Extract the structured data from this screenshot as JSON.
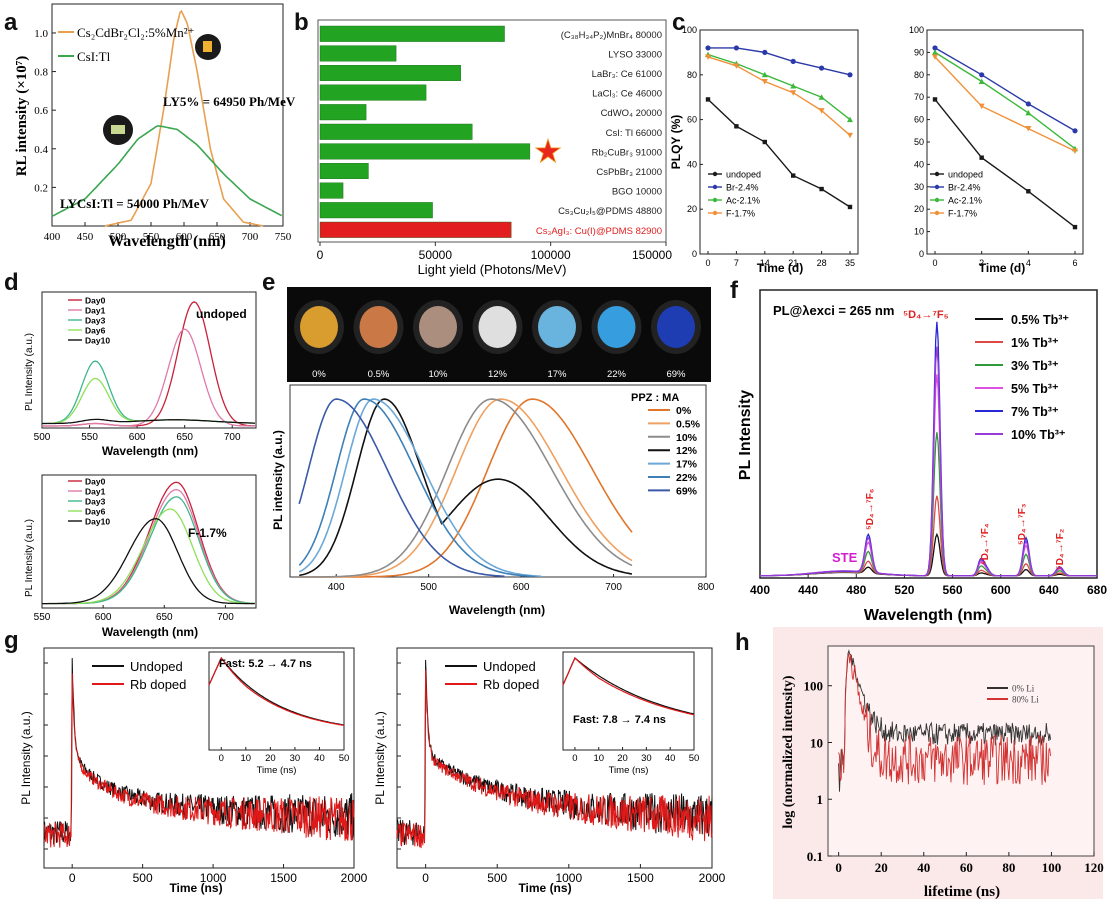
{
  "chart_data": [
    {
      "panel": "a",
      "type": "line",
      "ylabel": "RL intensity (×10⁷)",
      "xlabel": "Wavelength (nm)",
      "xlim": [
        400,
        750
      ],
      "ylim": [
        0,
        1.15
      ],
      "xticks": [
        400,
        450,
        500,
        550,
        600,
        650,
        700,
        750
      ],
      "yticks": [
        0.2,
        0.4,
        0.6,
        0.8,
        1.0
      ],
      "legend": [
        "Cs₂CdBr₂Cl₂:5%Mn²⁺",
        "CsI:Tl"
      ],
      "annotations": [
        "LY5% = 64950 Ph/MeV",
        "LYCsI:Tl = 54000 Ph/MeV"
      ],
      "series": [
        {
          "name": "Cs₂CdBr₂Cl₂:5%Mn²⁺",
          "color": "#e8a050",
          "peak_x": 595,
          "peak_y": 1.12,
          "points": [
            [
              480,
              0
            ],
            [
              520,
              0.03
            ],
            [
              550,
              0.22
            ],
            [
              570,
              0.62
            ],
            [
              585,
              0.98
            ],
            [
              595,
              1.12
            ],
            [
              605,
              1.05
            ],
            [
              620,
              0.8
            ],
            [
              640,
              0.4
            ],
            [
              660,
              0.14
            ],
            [
              690,
              0.02
            ],
            [
              720,
              0
            ]
          ]
        },
        {
          "name": "CsI:Tl",
          "color": "#3aa650",
          "points": [
            [
              400,
              0.05
            ],
            [
              450,
              0.14
            ],
            [
              500,
              0.32
            ],
            [
              530,
              0.45
            ],
            [
              560,
              0.52
            ],
            [
              590,
              0.5
            ],
            [
              620,
              0.42
            ],
            [
              660,
              0.27
            ],
            [
              700,
              0.14
            ],
            [
              750,
              0.05
            ]
          ]
        }
      ]
    },
    {
      "panel": "b",
      "type": "bar",
      "orientation": "horizontal",
      "xlabel": "Light yield (Photons/MeV)",
      "xlim": [
        0,
        150000
      ],
      "xticks": [
        "0",
        "50000",
        "100000",
        "150000"
      ],
      "bars": [
        {
          "label": "(C₃₈H₃₄P₂)MnBr₄  80000",
          "value": 80000,
          "color": "#22a322"
        },
        {
          "label": "LYSO  33000",
          "value": 33000,
          "color": "#22a322"
        },
        {
          "label": "LaBr₃: Ce  61000",
          "value": 61000,
          "color": "#22a322"
        },
        {
          "label": "LaCl₃: Ce  46000",
          "value": 46000,
          "color": "#22a322"
        },
        {
          "label": "CdWO₄  20000",
          "value": 20000,
          "color": "#22a322"
        },
        {
          "label": "CsI: Tl  66000",
          "value": 66000,
          "color": "#22a322"
        },
        {
          "label": "Rb₂CuBr₃  91000",
          "value": 91000,
          "color": "#22a322"
        },
        {
          "label": "CsPbBr₃  21000",
          "value": 21000,
          "color": "#22a322"
        },
        {
          "label": "BGO  10000",
          "value": 10000,
          "color": "#22a322"
        },
        {
          "label": "Cs₃Cu₂I₅@PDMS  48800",
          "value": 48800,
          "color": "#22a322"
        },
        {
          "label": "Cs₃AgI₃: Cu(I)@PDMS  82900",
          "value": 82900,
          "color": "#e21e1e"
        }
      ]
    },
    {
      "panel": "c-left",
      "type": "line",
      "xlabel": "Time (d)",
      "ylabel": "PLQY (%)",
      "x": [
        0,
        7,
        14,
        21,
        28,
        35
      ],
      "ylim": [
        0,
        100
      ],
      "yticks": [
        0,
        20,
        40,
        60,
        80,
        100
      ],
      "series": [
        {
          "name": "undoped",
          "color": "#1a1a1a",
          "values": [
            69,
            57,
            50,
            35,
            29,
            21
          ]
        },
        {
          "name": "Br-2.4%",
          "color": "#2b3aa8",
          "values": [
            92,
            92,
            90,
            86,
            83,
            80
          ]
        },
        {
          "name": "Ac-2.1%",
          "color": "#3cb83c",
          "values": [
            89,
            85,
            80,
            75,
            70,
            60
          ]
        },
        {
          "name": "F-1.7%",
          "color": "#f0913a",
          "values": [
            88,
            84,
            77,
            72,
            64,
            53
          ]
        }
      ]
    },
    {
      "panel": "c-right",
      "type": "line",
      "xlabel": "Time (d)",
      "x": [
        0,
        2,
        4,
        6
      ],
      "ylim": [
        0,
        100
      ],
      "yticks": [
        0,
        10,
        20,
        30,
        40,
        50,
        60,
        70,
        80,
        90,
        100
      ],
      "series": [
        {
          "name": "undoped",
          "color": "#1a1a1a",
          "values": [
            69,
            43,
            28,
            12
          ]
        },
        {
          "name": "Br-2.4%",
          "color": "#2b3aa8",
          "values": [
            92,
            80,
            67,
            55
          ]
        },
        {
          "name": "Ac-2.1%",
          "color": "#3cb83c",
          "values": [
            90,
            77,
            63,
            47
          ]
        },
        {
          "name": "F-1.7%",
          "color": "#f0913a",
          "values": [
            88,
            66,
            56,
            46
          ]
        }
      ]
    },
    {
      "panel": "d-top",
      "type": "line",
      "title": "undoped",
      "xlabel": "Wavelength (nm)",
      "ylabel": "PL Intensity (a.u.)",
      "xlim": [
        500,
        725
      ],
      "xticks": [
        500,
        550,
        600,
        650,
        700
      ],
      "series": [
        {
          "name": "Day0",
          "color": "#c8213a",
          "peak_x": 660,
          "peak_y": 1.0
        },
        {
          "name": "Day1",
          "color": "#e07aa8",
          "peak_x": 650,
          "peak_y": 0.78
        },
        {
          "name": "Day3",
          "color": "#3cb88a",
          "peak_x": 556,
          "peak_y": 0.5
        },
        {
          "name": "Day6",
          "color": "#8de05a",
          "peak_x": 556,
          "peak_y": 0.36
        },
        {
          "name": "Day10",
          "color": "#111111",
          "peak_x": 556,
          "peak_y": 0.03
        }
      ]
    },
    {
      "panel": "d-bottom",
      "type": "line",
      "title": "F-1.7%",
      "xlabel": "Wavelength (nm)",
      "ylabel": "PL Intensity (a.u.)",
      "xlim": [
        550,
        725
      ],
      "xticks": [
        550,
        600,
        650,
        700
      ],
      "series": [
        {
          "name": "Day0",
          "color": "#c8213a",
          "peak_x": 660,
          "peak_y": 1.0
        },
        {
          "name": "Day1",
          "color": "#e07aa8",
          "peak_x": 660,
          "peak_y": 0.94
        },
        {
          "name": "Day3",
          "color": "#3cb88a",
          "peak_x": 660,
          "peak_y": 0.88
        },
        {
          "name": "Day6",
          "color": "#8de05a",
          "peak_x": 655,
          "peak_y": 0.78
        },
        {
          "name": "Day10",
          "color": "#111111",
          "peak_x": 643,
          "peak_y": 0.7
        }
      ]
    },
    {
      "panel": "e",
      "type": "line",
      "legend_title": "PPZ : MA",
      "xlabel": "Wavelength (nm)",
      "ylabel": "PL intensity (a.u.)",
      "xlim": [
        350,
        800
      ],
      "xticks": [
        400,
        500,
        600,
        700,
        800
      ],
      "photo_labels": [
        "0%",
        "0.5%",
        "10%",
        "12%",
        "17%",
        "22%",
        "69%"
      ],
      "series": [
        {
          "name": "0%",
          "color": "#e0762b",
          "peak_x": 612
        },
        {
          "name": "0.5%",
          "color": "#f0a060",
          "peak_x": 578
        },
        {
          "name": "10%",
          "color": "#8c8c8c",
          "peak_x": 568
        },
        {
          "name": "12%",
          "color": "#111111",
          "peak_x": 450
        },
        {
          "name": "17%",
          "color": "#6aa8d8",
          "peak_x": 440
        },
        {
          "name": "22%",
          "color": "#3d80b8",
          "peak_x": 430
        },
        {
          "name": "69%",
          "color": "#3a5aa8",
          "peak_x": 400
        }
      ]
    },
    {
      "panel": "f",
      "type": "line",
      "title": "PL@λexci = 265 nm",
      "xlabel": "Wavelength (nm)",
      "ylabel": "PL Intensity",
      "xlim": [
        400,
        680
      ],
      "xticks": [
        400,
        440,
        480,
        520,
        560,
        600,
        640,
        680
      ],
      "annotations": [
        "STE",
        "⁵D₄→⁷F₆",
        "⁵D₄→⁷F₅",
        "⁵D₄→⁷F₄",
        "⁵D₄→⁷F₃",
        "⁵D₄→⁷F₂"
      ],
      "series": [
        {
          "name": "0.5% Tb³⁺",
          "color": "#111111",
          "peak_y": 0.15
        },
        {
          "name": "1% Tb³⁺",
          "color": "#e04848",
          "peak_y": 0.29
        },
        {
          "name": "3% Tb³⁺",
          "color": "#2e9a3a",
          "peak_y": 0.52
        },
        {
          "name": "5% Tb³⁺",
          "color": "#e050e0",
          "peak_y": 0.73
        },
        {
          "name": "7% Tb³⁺",
          "color": "#2828d8",
          "peak_y": 0.92
        },
        {
          "name": "10% Tb³⁺",
          "color": "#9a3ad8",
          "peak_y": 0.83
        }
      ]
    },
    {
      "panel": "g-left",
      "type": "line",
      "xlabel": "Time (ns)",
      "ylabel": "PL Intensity (a.u.)",
      "xlim": [
        -200,
        2000
      ],
      "xticks": [
        0,
        500,
        1000,
        1500,
        2000
      ],
      "inset": {
        "label": "Fast: 5.2 → 4.7 ns",
        "xlabel": "Time (ns)",
        "xticks": [
          0,
          10,
          20,
          30,
          40,
          50
        ]
      },
      "series": [
        {
          "name": "Undoped",
          "color": "#111111"
        },
        {
          "name": "Rb doped",
          "color": "#e01818"
        }
      ]
    },
    {
      "panel": "g-right",
      "type": "line",
      "xlabel": "Time (ns)",
      "ylabel": "PL Intensity (a.u.)",
      "xlim": [
        -200,
        2000
      ],
      "xticks": [
        0,
        500,
        1000,
        1500,
        2000
      ],
      "inset": {
        "label": "Fast: 7.8 → 7.4 ns",
        "xlabel": "Time (ns)",
        "xticks": [
          0,
          10,
          20,
          30,
          40,
          50
        ]
      },
      "series": [
        {
          "name": "Undoped",
          "color": "#111111"
        },
        {
          "name": "Rb doped",
          "color": "#e01818"
        }
      ]
    },
    {
      "panel": "h",
      "type": "line",
      "xlabel": "lifetime (ns)",
      "ylabel": "log (normalized intensity)",
      "xlim": [
        -5,
        120
      ],
      "xticks": [
        0,
        20,
        40,
        60,
        80,
        100,
        120
      ],
      "yticks": [
        "0.1",
        "1",
        "10",
        "100"
      ],
      "series": [
        {
          "name": "0% Li",
          "color": "#333333"
        },
        {
          "name": "80% Li",
          "color": "#d23232"
        }
      ]
    }
  ],
  "panel_labels": [
    "a",
    "b",
    "c",
    "d",
    "e",
    "f",
    "g",
    "h"
  ],
  "texts": {
    "a_legend1": "Cs₂CdBr₂Cl₂:5%Mn²⁺",
    "a_legend2": "CsI:Tl",
    "a_ly1": "LY5% = 64950 Ph/MeV",
    "a_ly2": "LYCsI:Tl = 54000 Ph/MeV",
    "a_xlabel": "Wavelength (nm)",
    "a_ylabel": "RL intensity (×10⁷)",
    "b_xlabel": "Light yield (Photons/MeV)",
    "c_xlabel": "Time (d)",
    "c_ylabel": "PLQY (%)",
    "d_top_title": "undoped",
    "d_bottom_title": "F-1.7%",
    "d_xlabel": "Wavelength (nm)",
    "d_ylabel": "PL Intensity (a.u.)",
    "e_legend_title": "PPZ : MA",
    "e_xlabel": "Wavelength (nm)",
    "e_ylabel": "PL intensity (a.u.)",
    "f_title": "PL@λexci = 265 nm",
    "f_xlabel": "Wavelength (nm)",
    "f_ylabel": "PL Intensity",
    "f_ste": "STE",
    "g_xlabel": "Time (ns)",
    "g_ylabel": "PL Intensity (a.u.)",
    "g_inset_xlabel": "Time (ns)",
    "g_inset1": "Fast: 5.2 → 4.7 ns",
    "g_inset2": "Fast: 7.8 → 7.4 ns",
    "h_xlabel": "lifetime (ns)",
    "h_ylabel": "log (normalized intensity)"
  }
}
